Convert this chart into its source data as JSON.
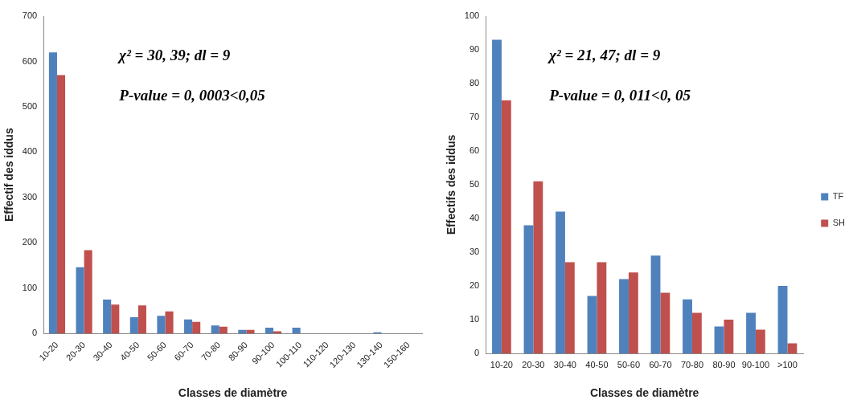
{
  "chart_data": [
    {
      "type": "bar",
      "xlabel": "Classes de diamètre",
      "ylabel": "Effectif des iddus",
      "categories": [
        "10-20",
        "20-30",
        "30-40",
        "40-50",
        "50-60",
        "60-70",
        "70-80",
        "80-90",
        "90-100",
        "100-110",
        "110-120",
        "120-130",
        "130-140",
        "150-160"
      ],
      "series": [
        {
          "color": "#4f81bd",
          "values": [
            620,
            146,
            75,
            36,
            39,
            31,
            18,
            8,
            13,
            13,
            0,
            0,
            3,
            0
          ]
        },
        {
          "color": "#c0504d",
          "values": [
            570,
            184,
            64,
            62,
            49,
            26,
            15,
            8,
            5,
            0,
            0,
            0,
            0,
            0
          ]
        }
      ],
      "ylim": [
        0,
        700
      ],
      "yticks": [
        0,
        100,
        200,
        300,
        400,
        500,
        600,
        700
      ],
      "grid": false,
      "legend": false,
      "annotations": [
        "χ² = 30, 39; dl = 9",
        "P-value = 0, 0003<0,05"
      ]
    },
    {
      "type": "bar",
      "xlabel": "Classes de diamètre",
      "ylabel": "Effectifs des iddus",
      "categories": [
        "10-20",
        "20-30",
        "30-40",
        "40-50",
        "50-60",
        "60-70",
        "70-80",
        "80-90",
        "90-100",
        ">100"
      ],
      "series": [
        {
          "name": "TF",
          "color": "#4f81bd",
          "values": [
            93,
            38,
            42,
            17,
            22,
            29,
            16,
            8,
            12,
            20
          ]
        },
        {
          "name": "SH",
          "color": "#c0504d",
          "values": [
            75,
            51,
            27,
            27,
            24,
            18,
            12,
            10,
            7,
            3
          ]
        }
      ],
      "ylim": [
        0,
        100
      ],
      "yticks": [
        0,
        10,
        20,
        30,
        40,
        50,
        60,
        70,
        80,
        90,
        100
      ],
      "grid": false,
      "legend": "right",
      "annotations": [
        "χ² = 21, 47; dl = 9",
        "P-value = 0, 011<0, 05"
      ]
    }
  ]
}
